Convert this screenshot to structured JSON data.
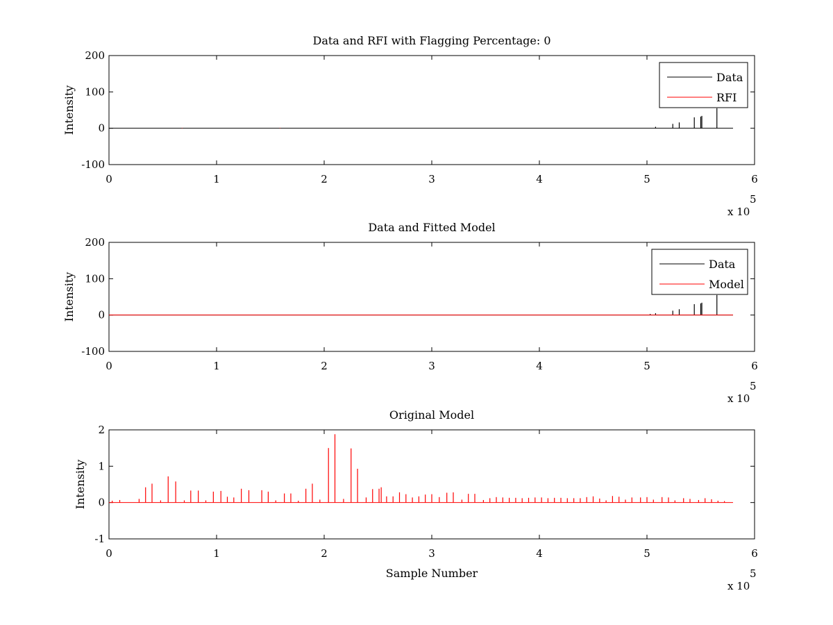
{
  "chart_data": [
    {
      "type": "line",
      "title": "Data and RFI with Flagging Percentage: 0",
      "xlabel": "",
      "ylabel": "Intensity",
      "xlim": [
        0,
        600000
      ],
      "ylim": [
        -100,
        200
      ],
      "x_ticks": [
        "0",
        "1",
        "2",
        "3",
        "4",
        "5",
        "6"
      ],
      "y_ticks": [
        "200",
        "100",
        "0",
        "-100"
      ],
      "x_multiplier": {
        "base": "x 10",
        "exp": "5"
      },
      "grid": false,
      "legend": {
        "position": "top-right",
        "entries": [
          {
            "name": "Data",
            "color": "#000000"
          },
          {
            "name": "RFI",
            "color": "#ff0000"
          }
        ]
      },
      "series": [
        {
          "name": "Data",
          "color": "#000000",
          "baseline": [
            0,
            580000
          ],
          "x": [
            508000,
            524000,
            530000,
            544000,
            550000,
            551000,
            565000
          ],
          "values": [
            4,
            12,
            16,
            30,
            32,
            34,
            55
          ]
        },
        {
          "name": "RFI",
          "color": "#ff0000",
          "baseline": [
            0,
            0
          ],
          "x": [
            68000,
            159000
          ],
          "values": [
            1,
            1
          ]
        }
      ]
    },
    {
      "type": "line",
      "title": "Data and Fitted Model",
      "xlabel": "",
      "ylabel": "Intensity",
      "xlim": [
        0,
        600000
      ],
      "ylim": [
        -100,
        200
      ],
      "x_ticks": [
        "0",
        "1",
        "2",
        "3",
        "4",
        "5",
        "6"
      ],
      "y_ticks": [
        "200",
        "100",
        "0",
        "-100"
      ],
      "x_multiplier": {
        "base": "x 10",
        "exp": "5"
      },
      "grid": false,
      "legend": {
        "position": "top-right",
        "entries": [
          {
            "name": "Data",
            "color": "#000000"
          },
          {
            "name": "Model",
            "color": "#ff0000"
          }
        ]
      },
      "series": [
        {
          "name": "Data",
          "color": "#000000",
          "baseline": [
            0,
            580000
          ],
          "x": [
            503000,
            508000,
            524000,
            530000,
            544000,
            550000,
            551000,
            565000
          ],
          "values": [
            3,
            5,
            12,
            16,
            30,
            32,
            34,
            55
          ]
        },
        {
          "name": "Model",
          "color": "#ff0000",
          "baseline": [
            0,
            580000
          ],
          "x": [],
          "values": []
        }
      ]
    },
    {
      "type": "line",
      "title": "Original Model",
      "xlabel": "Sample Number",
      "ylabel": "Intensity",
      "xlim": [
        0,
        600000
      ],
      "ylim": [
        -1,
        2
      ],
      "x_ticks": [
        "0",
        "1",
        "2",
        "3",
        "4",
        "5",
        "6"
      ],
      "y_ticks": [
        "2",
        "1",
        "0",
        "-1"
      ],
      "x_multiplier": {
        "base": "x 10",
        "exp": "5"
      },
      "grid": false,
      "series": [
        {
          "name": "Model",
          "color": "#ff0000",
          "baseline": [
            0,
            580000
          ],
          "x": [
            3000,
            10000,
            28000,
            34000,
            40000,
            48000,
            55000,
            62000,
            70000,
            76000,
            83000,
            90000,
            97000,
            104000,
            110000,
            116000,
            123000,
            130000,
            142000,
            148000,
            155000,
            163000,
            169000,
            176000,
            183000,
            189000,
            196000,
            204000,
            210000,
            218000,
            225000,
            231000,
            239000,
            245000,
            251000,
            253000,
            258000,
            264000,
            270000,
            276000,
            282000,
            288000,
            294000,
            300000,
            307000,
            314000,
            320000,
            328000,
            334000,
            340000,
            348000,
            354000,
            360000,
            366000,
            372000,
            378000,
            384000,
            390000,
            396000,
            402000,
            408000,
            414000,
            420000,
            426000,
            432000,
            438000,
            444000,
            450000,
            456000,
            462000,
            468000,
            474000,
            480000,
            486000,
            494000,
            500000,
            506000,
            514000,
            520000,
            526000,
            534000,
            540000,
            548000,
            554000,
            560000,
            566000,
            572000
          ],
          "values": [
            0.05,
            0.07,
            0.1,
            0.42,
            0.52,
            0.06,
            0.72,
            0.58,
            0.06,
            0.33,
            0.33,
            0.06,
            0.3,
            0.32,
            0.16,
            0.14,
            0.38,
            0.34,
            0.34,
            0.3,
            0.06,
            0.25,
            0.25,
            0.05,
            0.38,
            0.52,
            0.08,
            1.5,
            1.88,
            0.1,
            1.49,
            0.93,
            0.14,
            0.37,
            0.38,
            0.42,
            0.17,
            0.17,
            0.28,
            0.23,
            0.14,
            0.17,
            0.22,
            0.23,
            0.15,
            0.27,
            0.28,
            0.08,
            0.24,
            0.24,
            0.07,
            0.12,
            0.15,
            0.14,
            0.13,
            0.13,
            0.12,
            0.13,
            0.14,
            0.14,
            0.12,
            0.13,
            0.13,
            0.12,
            0.12,
            0.12,
            0.15,
            0.17,
            0.11,
            0.06,
            0.18,
            0.16,
            0.08,
            0.14,
            0.14,
            0.15,
            0.08,
            0.15,
            0.14,
            0.06,
            0.12,
            0.1,
            0.07,
            0.12,
            0.09,
            0.05,
            0.04
          ]
        }
      ]
    }
  ]
}
